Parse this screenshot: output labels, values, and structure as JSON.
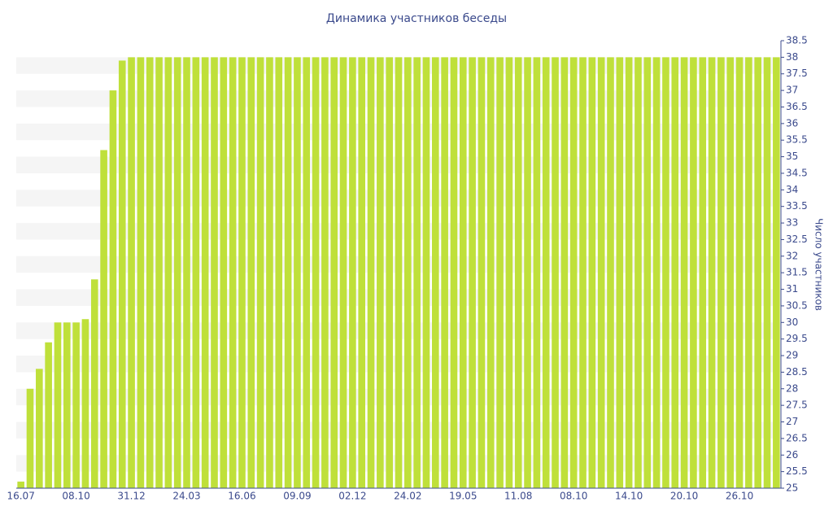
{
  "chart_data": {
    "type": "bar",
    "title": "Динамика участников беседы",
    "y_label": "Число участников",
    "color": "#bfe03a",
    "grid": "bands",
    "categories": [
      "16.07",
      null,
      null,
      null,
      null,
      null,
      "08.10",
      null,
      null,
      null,
      null,
      null,
      "31.12",
      null,
      null,
      null,
      null,
      null,
      "24.03",
      null,
      null,
      null,
      null,
      null,
      "16.06",
      null,
      null,
      null,
      null,
      null,
      "09.09",
      null,
      null,
      null,
      null,
      null,
      "02.12",
      null,
      null,
      null,
      null,
      null,
      "24.02",
      null,
      null,
      null,
      null,
      null,
      "19.05",
      null,
      null,
      null,
      null,
      null,
      "11.08",
      null,
      null,
      null,
      null,
      null,
      "08.10",
      null,
      null,
      null,
      null,
      null,
      "14.10",
      null,
      null,
      null,
      null,
      null,
      "20.10",
      null,
      null,
      null,
      null,
      null,
      "26.10",
      null,
      null,
      null,
      null
    ],
    "values": [
      25.2,
      28,
      28.6,
      29.4,
      30,
      30,
      30,
      30.1,
      31.3,
      35.2,
      37,
      37.9,
      38,
      38,
      38,
      38,
      38,
      38,
      38,
      38,
      38,
      38,
      38,
      38,
      38,
      38,
      38,
      38,
      38,
      38,
      38,
      38,
      38,
      38,
      38,
      38,
      38,
      38,
      38,
      38,
      38,
      38,
      38,
      38,
      38,
      38,
      38,
      38,
      38,
      38,
      38,
      38,
      38,
      38,
      38,
      38,
      38,
      38,
      38,
      38,
      38,
      38,
      38,
      38,
      38,
      38,
      38,
      38,
      38,
      38,
      38,
      38,
      38,
      38,
      38,
      38,
      38,
      38,
      38,
      38,
      38,
      38,
      38
    ],
    "ylim": [
      25,
      38.5
    ],
    "yticks": [
      25,
      25.5,
      26,
      26.5,
      27,
      27.5,
      28,
      28.5,
      29,
      29.5,
      30,
      30.5,
      31,
      31.5,
      32,
      32.5,
      33,
      33.5,
      34,
      34.5,
      35,
      35.5,
      36,
      36.5,
      37,
      37.5,
      38,
      38.5
    ]
  }
}
